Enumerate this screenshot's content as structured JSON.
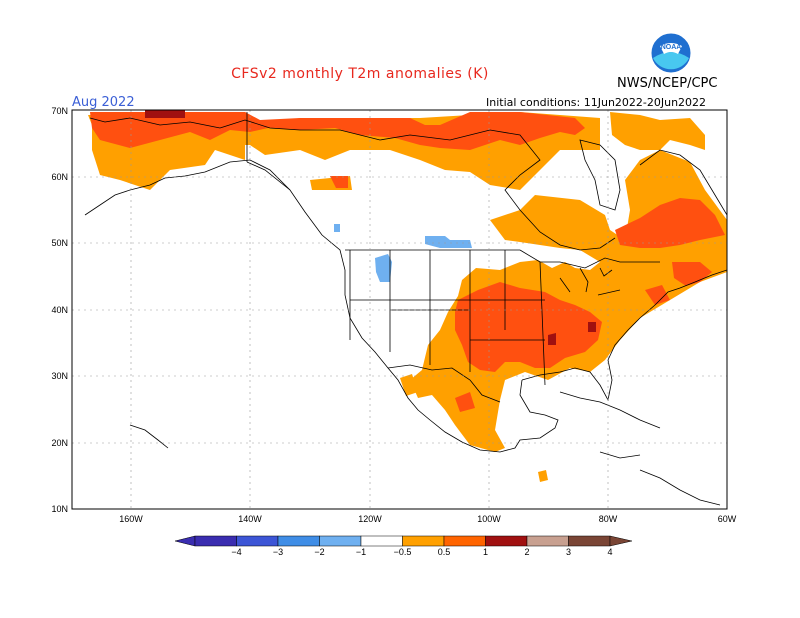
{
  "title": "CFSv2 monthly T2m anomalies (K)",
  "month": "Aug 2022",
  "initial_conditions": "Initial conditions: 11Jun2022-20Jun2022",
  "agency": "NWS/NCEP/CPC",
  "logo_text": "NOAA",
  "colors": {
    "cold4": "#3a2db0",
    "cold3": "#3c55d6",
    "cold2": "#3f8de6",
    "cold1": "#6fb0f0",
    "warm05": "#ffa000",
    "warm1": "#ff6400",
    "warm2": "#f03c0a",
    "warm3": "#a01010",
    "warm4": "#c8a090",
    "warm5": "#7a4535"
  },
  "map": {
    "lat_labels": [
      "70N",
      "60N",
      "50N",
      "40N",
      "30N",
      "20N",
      "10N"
    ],
    "lon_labels": [
      "160W",
      "140W",
      "120W",
      "100W",
      "80W",
      "60W"
    ],
    "anomaly_regions": [
      {
        "name": "Alaska/Yukon warm",
        "level": "0.5-1"
      },
      {
        "name": "Arctic coast warm",
        "level": "1-2"
      },
      {
        "name": "Central US warm",
        "level": "1-2"
      },
      {
        "name": "Mississippi valley warm",
        "level": "2-3"
      },
      {
        "name": "Quebec warm",
        "level": "1-2"
      },
      {
        "name": "Northwest cool",
        "level": "-1 to -0.5"
      }
    ]
  },
  "colorbar": {
    "ticks": [
      "−4",
      "−3",
      "−2",
      "−1",
      "−0.5",
      "0.5",
      "1",
      "2",
      "3",
      "4"
    ],
    "bins": [
      {
        "low": -4,
        "high": -3,
        "color": "#3a2db0"
      },
      {
        "low": -3,
        "high": -2,
        "color": "#3c55d6"
      },
      {
        "low": -2,
        "high": -1,
        "color": "#3f8de6"
      },
      {
        "low": -1,
        "high": -0.5,
        "color": "#6fb0f0"
      },
      {
        "low": -0.5,
        "high": 0.5,
        "color": "#ffffff"
      },
      {
        "low": 0.5,
        "high": 1,
        "color": "#ffa000"
      },
      {
        "low": 1,
        "high": 2,
        "color": "#ff6400"
      },
      {
        "low": 2,
        "high": 3,
        "color": "#a01010"
      },
      {
        "low": 3,
        "high": 4,
        "color": "#c8a090"
      },
      {
        "low": 4,
        "high": 5,
        "color": "#7a4535"
      }
    ]
  }
}
